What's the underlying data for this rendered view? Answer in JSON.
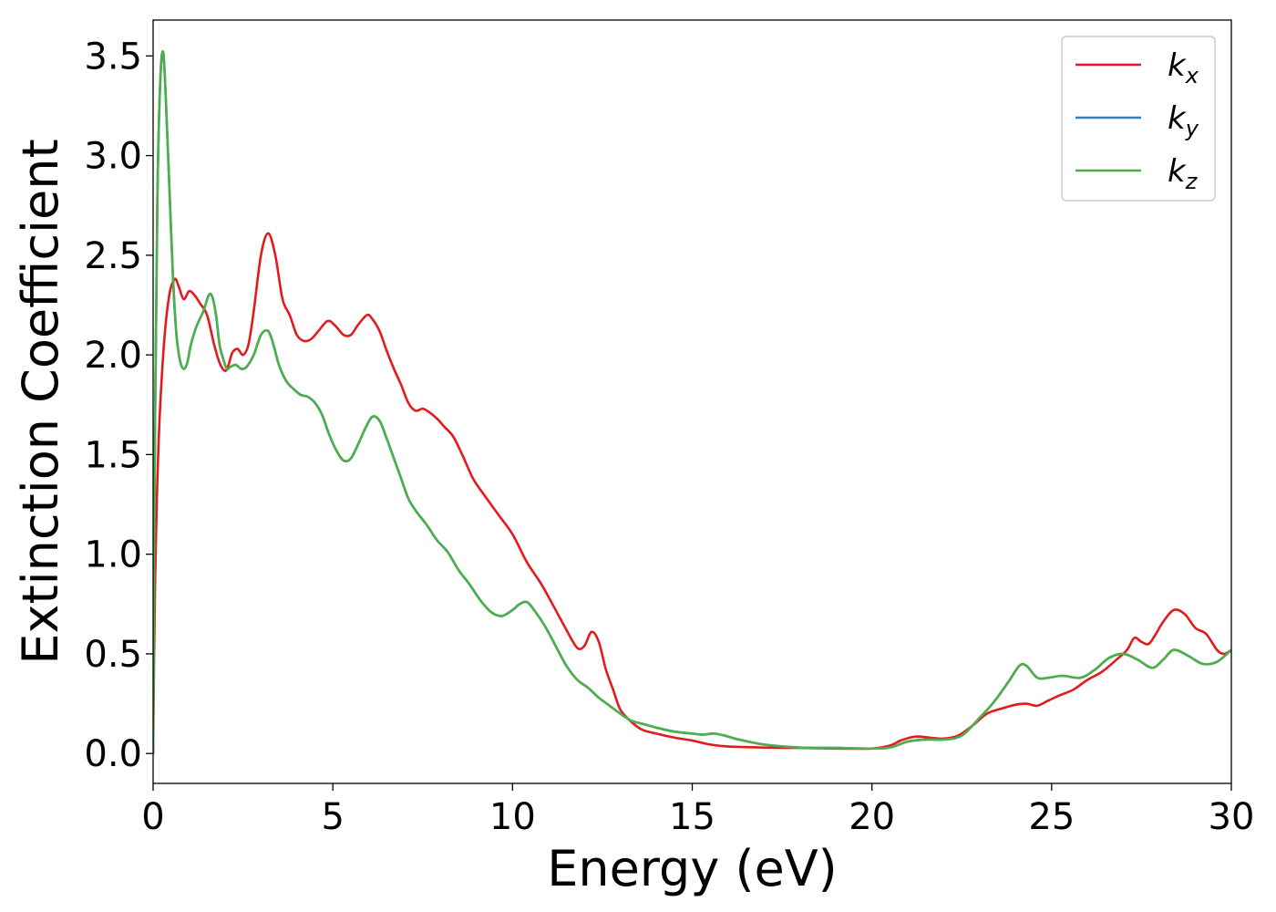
{
  "chart_data": {
    "type": "line",
    "title": "",
    "xlabel": "Energy (eV)",
    "ylabel": "Extinction Coefficient",
    "xlim": [
      0,
      30
    ],
    "ylim": [
      -0.15,
      3.68
    ],
    "xticks": [
      0,
      5,
      10,
      15,
      20,
      25,
      30
    ],
    "xtick_labels": [
      "0",
      "5",
      "10",
      "15",
      "20",
      "25",
      "30"
    ],
    "yticks": [
      0.0,
      0.5,
      1.0,
      1.5,
      2.0,
      2.5,
      3.0,
      3.5
    ],
    "ytick_labels": [
      "0.0",
      "0.5",
      "1.0",
      "1.5",
      "2.0",
      "2.5",
      "3.0",
      "3.5"
    ],
    "grid": false,
    "legend_position": "top-right",
    "series": [
      {
        "name": "k",
        "name_subscript": "x",
        "color": "#e41a1c",
        "x": [
          0,
          0.05,
          0.15,
          0.3,
          0.45,
          0.6,
          0.7,
          0.85,
          1.0,
          1.15,
          1.3,
          1.5,
          1.7,
          1.85,
          2.0,
          2.1,
          2.2,
          2.35,
          2.5,
          2.65,
          2.8,
          3.0,
          3.2,
          3.4,
          3.6,
          3.8,
          4.0,
          4.2,
          4.4,
          4.6,
          4.85,
          5.05,
          5.3,
          5.5,
          5.7,
          5.95,
          6.1,
          6.3,
          6.5,
          6.7,
          6.9,
          7.1,
          7.3,
          7.5,
          7.7,
          7.9,
          8.1,
          8.35,
          8.6,
          8.9,
          9.2,
          9.6,
          10.0,
          10.4,
          10.8,
          11.2,
          11.5,
          11.8,
          12.0,
          12.2,
          12.4,
          12.6,
          12.8,
          13.0,
          13.3,
          13.6,
          14.0,
          14.5,
          15.0,
          15.5,
          16.0,
          17.0,
          18.0,
          19.0,
          20.0,
          20.5,
          20.8,
          21.2,
          21.6,
          22.0,
          22.4,
          22.8,
          23.2,
          23.6,
          24.0,
          24.3,
          24.6,
          24.9,
          25.2,
          25.6,
          26.0,
          26.4,
          26.8,
          27.1,
          27.3,
          27.5,
          27.7,
          27.9,
          28.1,
          28.4,
          28.7,
          29.0,
          29.3,
          29.6,
          29.8,
          30.0
        ],
        "y": [
          0.0,
          0.8,
          1.55,
          2.05,
          2.3,
          2.38,
          2.35,
          2.28,
          2.32,
          2.3,
          2.26,
          2.2,
          2.05,
          1.96,
          1.92,
          1.95,
          2.01,
          2.03,
          2.0,
          2.05,
          2.22,
          2.5,
          2.61,
          2.5,
          2.28,
          2.2,
          2.1,
          2.07,
          2.08,
          2.12,
          2.17,
          2.15,
          2.1,
          2.1,
          2.15,
          2.2,
          2.18,
          2.12,
          2.02,
          1.93,
          1.85,
          1.76,
          1.72,
          1.73,
          1.71,
          1.68,
          1.64,
          1.59,
          1.5,
          1.38,
          1.3,
          1.2,
          1.1,
          0.96,
          0.85,
          0.72,
          0.62,
          0.53,
          0.54,
          0.61,
          0.56,
          0.42,
          0.32,
          0.22,
          0.16,
          0.12,
          0.1,
          0.08,
          0.065,
          0.045,
          0.035,
          0.03,
          0.028,
          0.025,
          0.025,
          0.04,
          0.065,
          0.085,
          0.08,
          0.075,
          0.09,
          0.14,
          0.2,
          0.225,
          0.245,
          0.25,
          0.24,
          0.265,
          0.29,
          0.32,
          0.37,
          0.41,
          0.47,
          0.52,
          0.58,
          0.56,
          0.55,
          0.6,
          0.66,
          0.72,
          0.7,
          0.63,
          0.6,
          0.52,
          0.5,
          0.52
        ]
      },
      {
        "name": "k",
        "name_subscript": "y",
        "color": "#377eb8",
        "x": [
          0,
          0.05,
          0.12,
          0.2,
          0.28,
          0.35,
          0.45,
          0.55,
          0.65,
          0.75,
          0.85,
          0.95,
          1.05,
          1.2,
          1.4,
          1.55,
          1.65,
          1.75,
          1.85,
          1.95,
          2.05,
          2.15,
          2.3,
          2.45,
          2.6,
          2.8,
          3.0,
          3.2,
          3.35,
          3.5,
          3.7,
          3.9,
          4.1,
          4.3,
          4.5,
          4.7,
          4.9,
          5.1,
          5.3,
          5.5,
          5.7,
          5.9,
          6.1,
          6.3,
          6.5,
          6.7,
          6.9,
          7.1,
          7.3,
          7.6,
          7.9,
          8.2,
          8.5,
          8.8,
          9.1,
          9.4,
          9.7,
          10.0,
          10.2,
          10.4,
          10.6,
          10.9,
          11.2,
          11.5,
          11.8,
          12.1,
          12.4,
          12.7,
          13.0,
          13.3,
          13.6,
          14.0,
          14.5,
          15.0,
          15.3,
          15.6,
          15.9,
          16.3,
          17.0,
          18.0,
          19.0,
          20.0,
          20.5,
          21.0,
          21.5,
          22.0,
          22.5,
          23.0,
          23.4,
          23.8,
          24.1,
          24.3,
          24.6,
          24.9,
          25.3,
          25.8,
          26.2,
          26.6,
          27.0,
          27.4,
          27.8,
          28.1,
          28.4,
          28.8,
          29.2,
          29.6,
          30.0
        ],
        "y": [
          0.0,
          1.6,
          2.8,
          3.38,
          3.52,
          3.3,
          2.85,
          2.4,
          2.1,
          1.97,
          1.93,
          1.96,
          2.05,
          2.14,
          2.22,
          2.3,
          2.29,
          2.2,
          2.05,
          1.98,
          1.93,
          1.94,
          1.95,
          1.93,
          1.94,
          2.0,
          2.1,
          2.12,
          2.05,
          1.95,
          1.87,
          1.83,
          1.8,
          1.79,
          1.76,
          1.7,
          1.6,
          1.52,
          1.47,
          1.48,
          1.55,
          1.63,
          1.69,
          1.67,
          1.58,
          1.48,
          1.38,
          1.28,
          1.22,
          1.15,
          1.07,
          1.01,
          0.92,
          0.85,
          0.77,
          0.71,
          0.69,
          0.72,
          0.75,
          0.76,
          0.72,
          0.64,
          0.54,
          0.44,
          0.37,
          0.33,
          0.28,
          0.24,
          0.2,
          0.165,
          0.15,
          0.13,
          0.11,
          0.1,
          0.095,
          0.1,
          0.09,
          0.07,
          0.045,
          0.03,
          0.028,
          0.025,
          0.03,
          0.06,
          0.07,
          0.07,
          0.09,
          0.18,
          0.26,
          0.36,
          0.44,
          0.44,
          0.38,
          0.38,
          0.39,
          0.38,
          0.42,
          0.48,
          0.5,
          0.47,
          0.43,
          0.47,
          0.52,
          0.49,
          0.45,
          0.46,
          0.52
        ]
      },
      {
        "name": "k",
        "name_subscript": "z",
        "color": "#4daf4a",
        "x": [
          0,
          0.05,
          0.12,
          0.2,
          0.28,
          0.35,
          0.45,
          0.55,
          0.65,
          0.75,
          0.85,
          0.95,
          1.05,
          1.2,
          1.4,
          1.55,
          1.65,
          1.75,
          1.85,
          1.95,
          2.05,
          2.15,
          2.3,
          2.45,
          2.6,
          2.8,
          3.0,
          3.2,
          3.35,
          3.5,
          3.7,
          3.9,
          4.1,
          4.3,
          4.5,
          4.7,
          4.9,
          5.1,
          5.3,
          5.5,
          5.7,
          5.9,
          6.1,
          6.3,
          6.5,
          6.7,
          6.9,
          7.1,
          7.3,
          7.6,
          7.9,
          8.2,
          8.5,
          8.8,
          9.1,
          9.4,
          9.7,
          10.0,
          10.2,
          10.4,
          10.6,
          10.9,
          11.2,
          11.5,
          11.8,
          12.1,
          12.4,
          12.7,
          13.0,
          13.3,
          13.6,
          14.0,
          14.5,
          15.0,
          15.3,
          15.6,
          15.9,
          16.3,
          17.0,
          18.0,
          19.0,
          20.0,
          20.5,
          21.0,
          21.5,
          22.0,
          22.5,
          23.0,
          23.4,
          23.8,
          24.1,
          24.3,
          24.6,
          24.9,
          25.3,
          25.8,
          26.2,
          26.6,
          27.0,
          27.4,
          27.8,
          28.1,
          28.4,
          28.8,
          29.2,
          29.6,
          30.0
        ],
        "y": [
          0.0,
          1.6,
          2.8,
          3.38,
          3.52,
          3.3,
          2.85,
          2.4,
          2.1,
          1.97,
          1.93,
          1.96,
          2.05,
          2.14,
          2.22,
          2.3,
          2.29,
          2.2,
          2.05,
          1.98,
          1.93,
          1.94,
          1.95,
          1.93,
          1.94,
          2.0,
          2.1,
          2.12,
          2.05,
          1.95,
          1.87,
          1.83,
          1.8,
          1.79,
          1.76,
          1.7,
          1.6,
          1.52,
          1.47,
          1.48,
          1.55,
          1.63,
          1.69,
          1.67,
          1.58,
          1.48,
          1.38,
          1.28,
          1.22,
          1.15,
          1.07,
          1.01,
          0.92,
          0.85,
          0.77,
          0.71,
          0.69,
          0.72,
          0.75,
          0.76,
          0.72,
          0.64,
          0.54,
          0.44,
          0.37,
          0.33,
          0.28,
          0.24,
          0.2,
          0.165,
          0.15,
          0.13,
          0.11,
          0.1,
          0.095,
          0.1,
          0.09,
          0.07,
          0.045,
          0.03,
          0.028,
          0.025,
          0.03,
          0.06,
          0.07,
          0.07,
          0.09,
          0.18,
          0.26,
          0.36,
          0.44,
          0.44,
          0.38,
          0.38,
          0.39,
          0.38,
          0.42,
          0.48,
          0.5,
          0.47,
          0.43,
          0.47,
          0.52,
          0.49,
          0.45,
          0.46,
          0.52
        ]
      }
    ]
  }
}
